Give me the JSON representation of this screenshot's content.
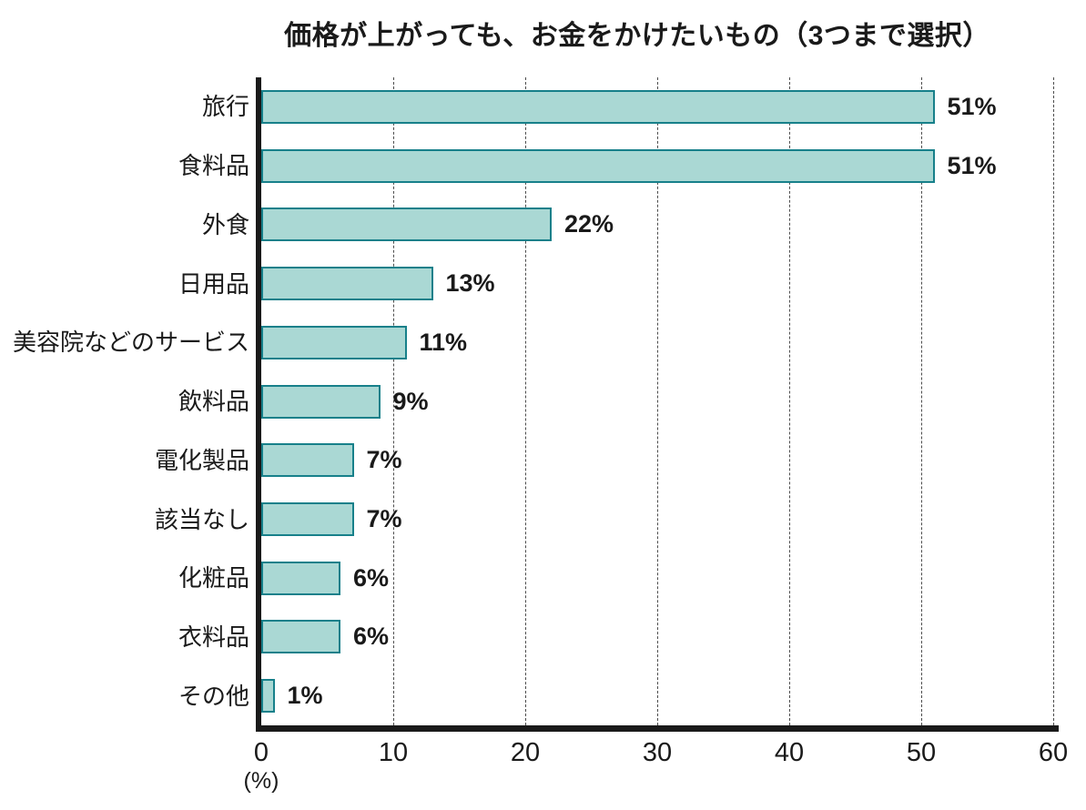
{
  "chart_data": {
    "type": "bar",
    "orientation": "horizontal",
    "title": "価格が上がっても、お金をかけたいもの（3つまで選択）",
    "categories": [
      "旅行",
      "食料品",
      "外食",
      "日用品",
      "美容院などのサービス",
      "飲料品",
      "電化製品",
      "該当なし",
      "化粧品",
      "衣料品",
      "その他"
    ],
    "values": [
      51,
      51,
      22,
      13,
      11,
      9,
      7,
      7,
      6,
      6,
      1
    ],
    "value_labels": [
      "51%",
      "51%",
      "22%",
      "13%",
      "11%",
      "9%",
      "7%",
      "7%",
      "6%",
      "6%",
      "1%"
    ],
    "xlabel": "(%)",
    "xlim": [
      0,
      60
    ],
    "xticks": [
      0,
      10,
      20,
      30,
      40,
      50,
      60
    ],
    "grid": {
      "axis": "x",
      "style": "dashed"
    },
    "legend": "none",
    "colors": {
      "bar_fill": "#aad8d4",
      "bar_border": "#17808a",
      "axis": "#1a1a1a",
      "gridline": "#4d4d4d",
      "text": "#1a1a1a"
    }
  }
}
